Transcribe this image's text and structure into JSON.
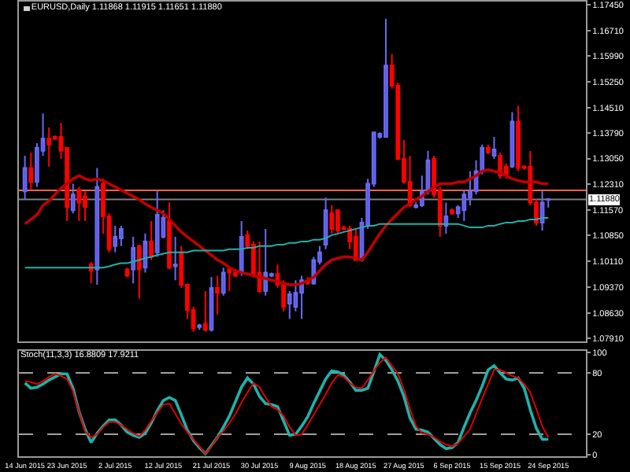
{
  "chart_data": [
    {
      "type": "candlestick",
      "title": "EURUSD,Daily 1.11868 1.11915 1.11651 1.11880",
      "categories": [
        null,
        null,
        null,
        null,
        null,
        null,
        null,
        null,
        null,
        null,
        null,
        null,
        null,
        null,
        null,
        null,
        null,
        null,
        null,
        null,
        null,
        null,
        null,
        null,
        null,
        null,
        null,
        null,
        null,
        null,
        null,
        null,
        null,
        null,
        null,
        null,
        null,
        null,
        null,
        null,
        null,
        null,
        null,
        null,
        null,
        null,
        null,
        null,
        null,
        null,
        null,
        null,
        null,
        null,
        null,
        null,
        null,
        null,
        null,
        null,
        null,
        null,
        null,
        null,
        null,
        null,
        null,
        null,
        null,
        null,
        null,
        null,
        null,
        null,
        null,
        null,
        null,
        null,
        null,
        null,
        null,
        null,
        null,
        null,
        null,
        null,
        null,
        null
      ],
      "ohlc": [
        [
          1.1211,
          1.1313,
          1.1188,
          1.1278
        ],
        [
          1.1278,
          1.1322,
          1.1215,
          1.1238
        ],
        [
          1.1238,
          1.1349,
          1.1224,
          1.1336
        ],
        [
          1.1327,
          1.1434,
          1.1313,
          1.1362
        ],
        [
          1.1362,
          1.1394,
          1.1282,
          1.1345
        ],
        [
          1.1367,
          1.1371,
          1.1358,
          1.1362
        ],
        [
          1.1367,
          1.1407,
          1.1304,
          1.1327
        ],
        [
          1.1336,
          1.1336,
          1.1126,
          1.1166
        ],
        [
          1.1157,
          1.1233,
          1.1148,
          1.1202
        ],
        [
          1.1215,
          1.1224,
          1.1126,
          1.1179
        ],
        [
          1.1197,
          1.1211,
          1.1126,
          1.1166
        ],
        [
          1.1002,
          1.101,
          1.0948,
          1.0984
        ],
        [
          1.0988,
          1.1278,
          1.0944,
          1.1224
        ],
        [
          1.1233,
          1.1247,
          1.109,
          1.114
        ],
        [
          1.114,
          1.1148,
          1.1037,
          1.1046
        ],
        [
          1.1055,
          1.1113,
          1.1037,
          1.1081
        ],
        [
          1.1077,
          1.1113,
          1.1055,
          1.1104
        ],
        [
          1.0988,
          1.0993,
          1.0966,
          1.097
        ],
        [
          1.0988,
          1.1081,
          1.0948,
          1.105
        ],
        [
          1.1055,
          1.1059,
          1.0904,
          1.0988
        ],
        [
          1.0993,
          1.109,
          1.0979,
          1.1068
        ],
        [
          1.1068,
          1.1126,
          1.1015,
          1.1024
        ],
        [
          1.1037,
          1.1211,
          1.1024,
          1.1144
        ],
        [
          1.1081,
          1.1157,
          1.1077,
          1.1135
        ],
        [
          1.1126,
          1.1179,
          1.0988,
          1.0993
        ],
        [
          1.0997,
          1.1081,
          1.0957,
          1.1002
        ],
        [
          1.1037,
          1.1055,
          1.0935,
          1.0944
        ],
        [
          1.0944,
          1.0948,
          1.0846,
          1.0872
        ],
        [
          1.0872,
          1.0881,
          1.081,
          1.0819
        ],
        [
          1.0823,
          1.0832,
          1.0815,
          1.0828
        ],
        [
          1.0832,
          1.0926,
          1.081,
          1.0815
        ],
        [
          1.0815,
          1.0966,
          1.081,
          1.0935
        ],
        [
          1.0935,
          1.097,
          1.0859,
          1.0921
        ],
        [
          1.0921,
          1.0993,
          1.0913,
          1.0979
        ],
        [
          1.0988,
          1.0993,
          1.0926,
          1.0979
        ],
        [
          1.0979,
          1.0988,
          1.0966,
          1.097
        ],
        [
          1.0979,
          1.1126,
          1.097,
          1.1081
        ],
        [
          1.1086,
          1.1099,
          1.1046,
          1.1055
        ],
        [
          1.1059,
          1.1068,
          1.0966,
          1.097
        ],
        [
          1.0979,
          1.1068,
          1.0921,
          1.0926
        ],
        [
          1.0926,
          1.1104,
          1.0913,
          1.0979
        ],
        [
          1.097,
          1.0979,
          1.0966,
          1.0975
        ],
        [
          1.0975,
          1.1002,
          1.0935,
          1.0944
        ],
        [
          1.0948,
          1.0957,
          1.0868,
          1.0881
        ],
        [
          1.089,
          1.0926,
          1.0846,
          1.0917
        ],
        [
          1.0881,
          1.0957,
          1.0868,
          1.0921
        ],
        [
          1.0921,
          1.097,
          1.0846,
          1.0957
        ],
        [
          1.0957,
          1.0966,
          1.0944,
          1.0948
        ],
        [
          1.0948,
          1.1024,
          1.0944,
          1.1015
        ],
        [
          1.101,
          1.1055,
          1.1002,
          1.1037
        ],
        [
          1.1059,
          1.1193,
          1.1046,
          1.1157
        ],
        [
          1.1148,
          1.1171,
          1.109,
          1.1104
        ],
        [
          1.1157,
          1.1157,
          1.109,
          1.1099
        ],
        [
          1.1108,
          1.1113,
          1.1099,
          1.1104
        ],
        [
          1.1104,
          1.1113,
          1.1046,
          1.1068
        ],
        [
          1.1081,
          1.1104,
          1.1015,
          1.1015
        ],
        [
          1.1015,
          1.1135,
          1.101,
          1.1122
        ],
        [
          1.1113,
          1.1247,
          1.1104,
          1.1233
        ],
        [
          1.1233,
          1.138,
          1.1224,
          1.138
        ],
        [
          1.1367,
          1.138,
          1.1362,
          1.1376
        ],
        [
          1.1367,
          1.1705,
          1.1367,
          1.1571
        ],
        [
          1.1571,
          1.1603,
          1.1505,
          1.1514
        ],
        [
          1.1514,
          1.1522,
          1.13,
          1.1304
        ],
        [
          1.1304,
          1.1358,
          1.1233,
          1.1238
        ],
        [
          1.1238,
          1.1313,
          1.1166,
          1.1171
        ],
        [
          1.1166,
          1.1179,
          1.1162,
          1.1171
        ],
        [
          1.1171,
          1.1256,
          1.1166,
          1.1211
        ],
        [
          1.1211,
          1.1327,
          1.1202,
          1.13
        ],
        [
          1.1304,
          1.1313,
          1.1193,
          1.1202
        ],
        [
          1.1215,
          1.1224,
          1.1081,
          1.1113
        ],
        [
          1.1113,
          1.1179,
          1.109,
          1.114
        ],
        [
          1.1157,
          1.1162,
          1.1144,
          1.1148
        ],
        [
          1.1148,
          1.1171,
          1.1135,
          1.1166
        ],
        [
          1.1157,
          1.1215,
          1.1126,
          1.1202
        ],
        [
          1.1193,
          1.1269,
          1.1171,
          1.1211
        ],
        [
          1.1211,
          1.13,
          1.1202,
          1.1269
        ],
        [
          1.1269,
          1.1345,
          1.126,
          1.1336
        ],
        [
          1.1336,
          1.1345,
          1.1318,
          1.1322
        ],
        [
          1.1313,
          1.1367,
          1.1304,
          1.1331
        ],
        [
          1.1313,
          1.1322,
          1.1247,
          1.1256
        ],
        [
          1.1282,
          1.1291,
          1.1247,
          1.1256
        ],
        [
          1.1282,
          1.1438,
          1.1278,
          1.1411
        ],
        [
          1.1411,
          1.1456,
          1.1269,
          1.1278
        ],
        [
          1.1282,
          1.1286,
          1.1273,
          1.1278
        ],
        [
          1.1282,
          1.1327,
          1.1171,
          1.1179
        ],
        [
          1.1179,
          1.1188,
          1.1113,
          1.1122
        ],
        [
          1.1122,
          1.1211,
          1.1099,
          1.1179
        ],
        [
          1.1187,
          1.1192,
          1.1165,
          1.1188
        ]
      ],
      "series": [
        {
          "type": "line",
          "color": "#c00000",
          "values": [
            1.1118,
            1.1131,
            1.1144,
            1.1171,
            1.1184,
            1.1202,
            1.122,
            1.1233,
            1.1247,
            1.1256,
            1.1247,
            1.1242,
            1.1247,
            1.1242,
            1.1233,
            1.1224,
            1.1215,
            1.1206,
            1.1197,
            1.1188,
            1.1175,
            1.1166,
            1.1157,
            1.1148,
            1.1131,
            1.1113,
            1.1095,
            1.1081,
            1.1068,
            1.1055,
            1.1042,
            1.1029,
            1.1015,
            1.1006,
            1.0993,
            1.0984,
            1.0979,
            1.0975,
            1.097,
            1.0966,
            1.0962,
            1.0957,
            1.0953,
            1.0948,
            1.0944,
            1.0944,
            1.0948,
            1.0957,
            1.0966,
            1.0984,
            1.1002,
            1.1015,
            1.102,
            1.1024,
            1.1024,
            1.102,
            1.1015,
            1.1037,
            1.1064,
            1.109,
            1.1113,
            1.1131,
            1.1148,
            1.1166,
            1.1175,
            1.1188,
            1.1197,
            1.1211,
            1.1224,
            1.1233,
            1.1233,
            1.1233,
            1.1238,
            1.1238,
            1.1247,
            1.1256,
            1.1269,
            1.1273,
            1.1269,
            1.1264,
            1.1256,
            1.1247,
            1.1242,
            1.1238,
            1.1238,
            1.1238,
            1.1233,
            1.1233
          ]
        },
        {
          "type": "line",
          "color": "#20b2aa",
          "values": [
            1.0993,
            1.0993,
            1.0993,
            1.0993,
            1.0993,
            1.0993,
            1.0993,
            1.0993,
            1.0993,
            1.0993,
            1.0993,
            1.0993,
            1.0993,
            1.0993,
            1.0997,
            1.1002,
            1.1006,
            1.1006,
            1.101,
            1.1015,
            1.102,
            1.1024,
            1.1029,
            1.1033,
            1.1037,
            1.1037,
            1.1037,
            1.1037,
            1.1042,
            1.1042,
            1.1042,
            1.1042,
            1.1042,
            1.1042,
            1.1046,
            1.1046,
            1.1046,
            1.105,
            1.105,
            1.1055,
            1.1055,
            1.1055,
            1.1059,
            1.1059,
            1.1064,
            1.1064,
            1.1068,
            1.1068,
            1.1073,
            1.1073,
            1.1077,
            1.1086,
            1.109,
            1.1095,
            1.1099,
            1.1104,
            1.1108,
            1.1113,
            1.1113,
            1.1118,
            1.1118,
            1.1118,
            1.1118,
            1.1118,
            1.1118,
            1.1118,
            1.1118,
            1.1118,
            1.1118,
            1.1118,
            1.1118,
            1.1118,
            1.1118,
            1.1113,
            1.1108,
            1.1108,
            1.1108,
            1.1113,
            1.1113,
            1.1118,
            1.1122,
            1.1122,
            1.1126,
            1.1126,
            1.1131,
            1.1131,
            1.1135,
            1.1135
          ]
        }
      ],
      "ylim": [
        1.0782,
        1.1754
      ],
      "yticks": [
        {
          "value": 1.1745,
          "label": "1.17450"
        },
        {
          "value": 1.1671,
          "label": "1.16710"
        },
        {
          "value": 1.1599,
          "label": "1.15990"
        },
        {
          "value": 1.1525,
          "label": "1.15250"
        },
        {
          "value": 1.1451,
          "label": "1.14510"
        },
        {
          "value": 1.1379,
          "label": "1.13790"
        },
        {
          "value": 1.1305,
          "label": "1.13050"
        },
        {
          "value": 1.1231,
          "label": "1.12310"
        },
        {
          "value": 1.1157,
          "label": "1.11570"
        },
        {
          "value": 1.1085,
          "label": "1.10850"
        },
        {
          "value": 1.1011,
          "label": "1.10110"
        },
        {
          "value": 1.0937,
          "label": "1.09370"
        },
        {
          "value": 1.0863,
          "label": "1.08630"
        },
        {
          "value": 1.0791,
          "label": "1.07910"
        }
      ],
      "ref_lines": [
        {
          "axis": "y",
          "value": 1.1214,
          "color": "#ff6347"
        },
        {
          "axis": "y",
          "value": 1.1188,
          "label": "1.11880",
          "color": "#808080"
        }
      ],
      "tick_labels": "y"
    },
    {
      "type": "line",
      "title": "Stoch(11,3,3) 16.8809 17.9211",
      "categories": [
        "14 Jun 2015",
        null,
        null,
        null,
        null,
        null,
        null,
        "23 Jun 2015",
        null,
        null,
        null,
        null,
        null,
        null,
        null,
        "2 Jul 2015",
        null,
        null,
        null,
        null,
        null,
        null,
        null,
        "12 Jul 2015",
        null,
        null,
        null,
        null,
        null,
        null,
        null,
        "21 Jul 2015",
        null,
        null,
        null,
        null,
        null,
        null,
        null,
        "30 Jul 2015",
        null,
        null,
        null,
        null,
        null,
        null,
        null,
        "9 Aug 2015",
        null,
        null,
        null,
        null,
        null,
        null,
        null,
        "18 Aug 2015",
        null,
        null,
        null,
        null,
        null,
        null,
        null,
        "27 Aug 2015",
        null,
        null,
        null,
        null,
        null,
        null,
        null,
        "6 Sep 2015",
        null,
        null,
        null,
        null,
        null,
        null,
        null,
        "15 Sep 2015",
        null,
        null,
        null,
        null,
        null,
        null,
        null,
        "24 Sep 2015"
      ],
      "series": [
        {
          "color": "#20b2aa",
          "values": [
            70,
            65,
            66,
            69,
            73,
            76,
            79,
            79,
            65,
            42,
            25,
            12,
            21,
            28,
            34,
            34,
            29,
            22,
            19,
            17,
            21,
            31,
            43,
            53,
            56,
            53,
            39,
            24,
            14,
            7,
            1,
            9,
            17,
            27,
            38,
            52,
            66,
            75,
            69,
            57,
            50,
            49,
            47,
            33,
            19,
            20,
            28,
            37,
            50,
            62,
            74,
            82,
            81,
            78,
            71,
            63,
            63,
            65,
            81,
            98,
            92,
            83,
            72,
            57,
            36,
            25,
            24,
            22,
            16,
            10,
            6,
            7,
            12,
            27,
            41,
            53,
            67,
            83,
            87,
            80,
            74,
            73,
            75,
            65,
            44,
            26,
            15,
            15
          ]
        },
        {
          "color": "#e00000",
          "values": [
            72,
            71,
            69,
            72,
            76,
            79,
            77,
            74,
            62,
            42,
            23,
            17,
            20,
            27,
            32,
            32,
            29,
            25,
            21,
            18,
            24,
            33,
            41,
            49,
            50,
            40,
            30,
            22,
            15,
            8,
            1,
            8,
            17,
            23,
            31,
            40,
            51,
            61,
            70,
            66,
            56,
            47,
            44,
            38,
            27,
            19,
            20,
            29,
            39,
            49,
            59,
            70,
            78,
            76,
            70,
            66,
            65,
            73,
            82,
            90,
            95,
            87,
            79,
            64,
            45,
            28,
            21,
            20,
            17,
            13,
            10,
            8,
            11,
            18,
            25,
            40,
            55,
            69,
            83,
            83,
            80,
            77,
            75,
            69,
            61,
            45,
            28,
            17
          ]
        }
      ],
      "ylim": [
        -1.5,
        101.5
      ],
      "yticks": [
        0,
        20,
        80,
        100
      ],
      "ref_lines": [
        {
          "axis": "y",
          "value": 80,
          "color": "#a0a0a0",
          "line_style": "dashed"
        },
        {
          "axis": "y",
          "value": 20,
          "color": "#a0a0a0",
          "line_style": "dashed"
        }
      ]
    }
  ]
}
